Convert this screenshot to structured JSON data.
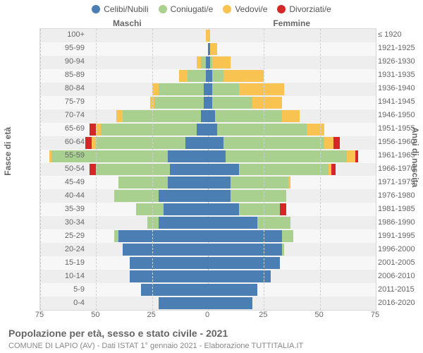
{
  "chart": {
    "type": "population-pyramid",
    "title": "Popolazione per età, sesso e stato civile - 2021",
    "subtitle": "COMUNE DI LAPIO (AV) - Dati ISTAT 1° gennaio 2021 - Elaborazione TUTTITALIA.IT",
    "y_left_title": "Fasce di età",
    "y_right_title": "Anni di nascita",
    "side_labels": {
      "male": "Maschi",
      "female": "Femmine"
    },
    "legend": [
      {
        "label": "Celibi/Nubili",
        "color": "#4b7fb3"
      },
      {
        "label": "Coniugati/e",
        "color": "#aad090"
      },
      {
        "label": "Vedovi/e",
        "color": "#f8c350"
      },
      {
        "label": "Divorziati/e",
        "color": "#d62728"
      }
    ],
    "colors": {
      "single": "#4b7fb3",
      "married": "#aad090",
      "widowed": "#f8c350",
      "divorced": "#d62728",
      "background": "#f7f7f7",
      "grid": "#d0d0d0",
      "center_line": "#aaaaaa",
      "alt_row": "rgba(230,230,230,0.5)",
      "text": "#666666"
    },
    "typography": {
      "axis_fontsize": 11,
      "legend_fontsize": 12,
      "title_fontsize": 14,
      "subtitle_fontsize": 11
    },
    "x_axis": {
      "max": 75,
      "ticks": [
        75,
        50,
        25,
        0,
        25,
        50,
        75
      ],
      "tick_step": 25
    },
    "rows": [
      {
        "age": "100+",
        "birth": "≤ 1920",
        "m": {
          "s": 0,
          "m": 0,
          "w": 1,
          "d": 0
        },
        "f": {
          "s": 0,
          "m": 0,
          "w": 1,
          "d": 0
        }
      },
      {
        "age": "95-99",
        "birth": "1921-1925",
        "m": {
          "s": 0,
          "m": 0,
          "w": 0,
          "d": 0
        },
        "f": {
          "s": 1,
          "m": 0,
          "w": 3,
          "d": 0
        }
      },
      {
        "age": "90-94",
        "birth": "1926-1930",
        "m": {
          "s": 1,
          "m": 2,
          "w": 2,
          "d": 0
        },
        "f": {
          "s": 1,
          "m": 1,
          "w": 8,
          "d": 0
        }
      },
      {
        "age": "85-89",
        "birth": "1931-1935",
        "m": {
          "s": 1,
          "m": 8,
          "w": 4,
          "d": 0
        },
        "f": {
          "s": 2,
          "m": 5,
          "w": 18,
          "d": 0
        }
      },
      {
        "age": "80-84",
        "birth": "1936-1940",
        "m": {
          "s": 2,
          "m": 20,
          "w": 3,
          "d": 0
        },
        "f": {
          "s": 2,
          "m": 12,
          "w": 20,
          "d": 0
        }
      },
      {
        "age": "75-79",
        "birth": "1941-1945",
        "m": {
          "s": 2,
          "m": 22,
          "w": 2,
          "d": 0
        },
        "f": {
          "s": 2,
          "m": 18,
          "w": 13,
          "d": 0
        }
      },
      {
        "age": "70-74",
        "birth": "1946-1950",
        "m": {
          "s": 3,
          "m": 35,
          "w": 3,
          "d": 0
        },
        "f": {
          "s": 3,
          "m": 30,
          "w": 8,
          "d": 0
        }
      },
      {
        "age": "65-69",
        "birth": "1951-1955",
        "m": {
          "s": 5,
          "m": 43,
          "w": 2,
          "d": 3
        },
        "f": {
          "s": 4,
          "m": 40,
          "w": 8,
          "d": 0
        }
      },
      {
        "age": "60-64",
        "birth": "1956-1960",
        "m": {
          "s": 10,
          "m": 40,
          "w": 2,
          "d": 3
        },
        "f": {
          "s": 7,
          "m": 45,
          "w": 4,
          "d": 3
        }
      },
      {
        "age": "55-59",
        "birth": "1961-1965",
        "m": {
          "s": 18,
          "m": 52,
          "w": 1,
          "d": 0
        },
        "f": {
          "s": 8,
          "m": 54,
          "w": 4,
          "d": 1
        }
      },
      {
        "age": "50-54",
        "birth": "1966-1970",
        "m": {
          "s": 17,
          "m": 33,
          "w": 0,
          "d": 3
        },
        "f": {
          "s": 14,
          "m": 40,
          "w": 1,
          "d": 2
        }
      },
      {
        "age": "45-49",
        "birth": "1971-1975",
        "m": {
          "s": 18,
          "m": 22,
          "w": 0,
          "d": 0
        },
        "f": {
          "s": 10,
          "m": 26,
          "w": 1,
          "d": 0
        }
      },
      {
        "age": "40-44",
        "birth": "1976-1980",
        "m": {
          "s": 22,
          "m": 20,
          "w": 0,
          "d": 0
        },
        "f": {
          "s": 10,
          "m": 25,
          "w": 0,
          "d": 0
        }
      },
      {
        "age": "35-39",
        "birth": "1981-1985",
        "m": {
          "s": 20,
          "m": 12,
          "w": 0,
          "d": 0
        },
        "f": {
          "s": 14,
          "m": 18,
          "w": 0,
          "d": 3
        }
      },
      {
        "age": "30-34",
        "birth": "1986-1990",
        "m": {
          "s": 22,
          "m": 5,
          "w": 0,
          "d": 0
        },
        "f": {
          "s": 22,
          "m": 15,
          "w": 0,
          "d": 0
        }
      },
      {
        "age": "25-29",
        "birth": "1991-1995",
        "m": {
          "s": 40,
          "m": 2,
          "w": 0,
          "d": 0
        },
        "f": {
          "s": 33,
          "m": 5,
          "w": 0,
          "d": 0
        }
      },
      {
        "age": "20-24",
        "birth": "1996-2000",
        "m": {
          "s": 38,
          "m": 0,
          "w": 0,
          "d": 0
        },
        "f": {
          "s": 33,
          "m": 1,
          "w": 0,
          "d": 0
        }
      },
      {
        "age": "15-19",
        "birth": "2001-2005",
        "m": {
          "s": 35,
          "m": 0,
          "w": 0,
          "d": 0
        },
        "f": {
          "s": 32,
          "m": 0,
          "w": 0,
          "d": 0
        }
      },
      {
        "age": "10-14",
        "birth": "2006-2010",
        "m": {
          "s": 35,
          "m": 0,
          "w": 0,
          "d": 0
        },
        "f": {
          "s": 28,
          "m": 0,
          "w": 0,
          "d": 0
        }
      },
      {
        "age": "5-9",
        "birth": "2011-2015",
        "m": {
          "s": 30,
          "m": 0,
          "w": 0,
          "d": 0
        },
        "f": {
          "s": 22,
          "m": 0,
          "w": 0,
          "d": 0
        }
      },
      {
        "age": "0-4",
        "birth": "2016-2020",
        "m": {
          "s": 22,
          "m": 0,
          "w": 0,
          "d": 0
        },
        "f": {
          "s": 20,
          "m": 0,
          "w": 0,
          "d": 0
        }
      }
    ]
  }
}
